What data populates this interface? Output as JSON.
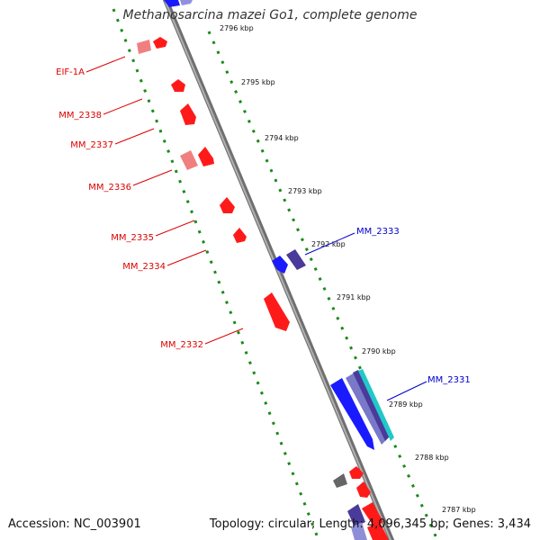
{
  "title": "Methanosarcina mazei Go1, complete genome",
  "footer": {
    "accession": "Accession: NC_003901",
    "summary": "Topology: circular; Length: 4,096,345 bp; Genes: 3,434"
  },
  "colors": {
    "reverse_gene": "#ff0000",
    "reverse_gene_light": "#f08080",
    "forward_gene": "#1a1aff",
    "forward_gene_alt": "#4a3a9a",
    "forward_gene_cyan": "#22c8c8",
    "other_gene": "#666666",
    "backbone": "#8a8a8a",
    "tick": "#1a8a1a",
    "label_reverse": "#dd0000",
    "label_forward": "#0000cc"
  },
  "scale_ticks": [
    "2796 kbp",
    "2795 kbp",
    "2794 kbp",
    "2793 kbp",
    "2792 kbp",
    "2791 kbp",
    "2790 kbp",
    "2789 kbp",
    "2788 kbp",
    "2787 kbp"
  ],
  "gene_labels": [
    {
      "text": "EIF-1A",
      "strand": "reverse"
    },
    {
      "text": "MM_2338",
      "strand": "reverse"
    },
    {
      "text": "MM_2337",
      "strand": "reverse"
    },
    {
      "text": "MM_2336",
      "strand": "reverse"
    },
    {
      "text": "MM_2335",
      "strand": "reverse"
    },
    {
      "text": "MM_2334",
      "strand": "reverse"
    },
    {
      "text": "MM_2332",
      "strand": "reverse"
    },
    {
      "text": "MM_2333",
      "strand": "forward"
    },
    {
      "text": "MM_2331",
      "strand": "forward"
    }
  ]
}
